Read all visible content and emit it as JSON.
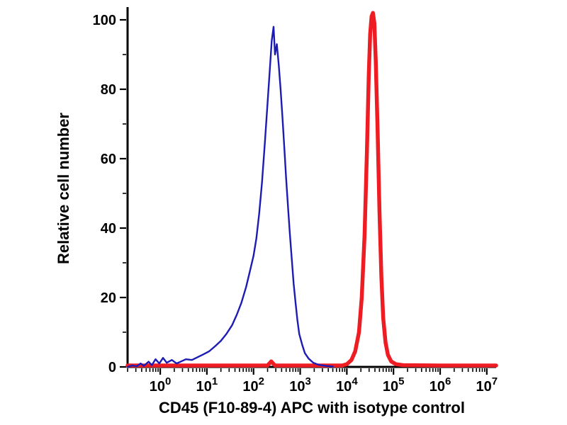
{
  "chart_data": {
    "type": "line",
    "subtype": "flow-cytometry-histogram-overlay",
    "title": "",
    "xlabel": "CD45 (F10-89-4) APC with isotype control",
    "ylabel": "Relative cell number",
    "x_scale": "log10",
    "x_tick_exponents": [
      0,
      1,
      2,
      3,
      4,
      5,
      6,
      7
    ],
    "x_log_range": [
      -0.7,
      7.2
    ],
    "y_ticks": [
      0,
      20,
      40,
      60,
      80,
      100
    ],
    "y_minor_step": 10,
    "y_range": [
      0,
      100
    ],
    "grid": false,
    "legend": "none",
    "axis_color": "#000000",
    "series": [
      {
        "id": "cd45-apc-curve",
        "name": "CD45 (F10-89-4) APC",
        "color": "#ee1c23",
        "stroke_width": 5.5,
        "peak_approx_x": 35000,
        "peak_approx_y": 102,
        "points_log10x_y": [
          [
            -0.7,
            0.4
          ],
          [
            1.0,
            0.4
          ],
          [
            2.3,
            0.4
          ],
          [
            2.38,
            1.6
          ],
          [
            2.46,
            0.4
          ],
          [
            3.5,
            0.4
          ],
          [
            3.9,
            0.4
          ],
          [
            4.0,
            0.8
          ],
          [
            4.1,
            2
          ],
          [
            4.18,
            4.5
          ],
          [
            4.26,
            10
          ],
          [
            4.32,
            20
          ],
          [
            4.38,
            38
          ],
          [
            4.43,
            62
          ],
          [
            4.47,
            84
          ],
          [
            4.5,
            96
          ],
          [
            4.53,
            101
          ],
          [
            4.56,
            102
          ],
          [
            4.59,
            99
          ],
          [
            4.62,
            88
          ],
          [
            4.66,
            68
          ],
          [
            4.7,
            45
          ],
          [
            4.74,
            26
          ],
          [
            4.78,
            14
          ],
          [
            4.83,
            7
          ],
          [
            4.88,
            3.5
          ],
          [
            4.95,
            1.6
          ],
          [
            5.05,
            0.8
          ],
          [
            5.2,
            0.5
          ],
          [
            6.0,
            0.4
          ],
          [
            7.2,
            0.4
          ]
        ]
      },
      {
        "id": "isotype-control-curve",
        "name": "isotype control",
        "color": "#1c1cb4",
        "stroke_width": 2.4,
        "peak_approx_x": 270,
        "peak_approx_y": 98,
        "points_log10x_y": [
          [
            -0.7,
            0
          ],
          [
            -0.6,
            0.4
          ],
          [
            -0.5,
            0.2
          ],
          [
            -0.42,
            1.0
          ],
          [
            -0.35,
            0.3
          ],
          [
            -0.25,
            1.5
          ],
          [
            -0.18,
            0.5
          ],
          [
            -0.1,
            2.2
          ],
          [
            -0.02,
            1.0
          ],
          [
            0.06,
            2.6
          ],
          [
            0.14,
            1.2
          ],
          [
            0.25,
            2.0
          ],
          [
            0.35,
            1.0
          ],
          [
            0.45,
            1.6
          ],
          [
            0.55,
            2.2
          ],
          [
            0.68,
            2.0
          ],
          [
            0.8,
            2.8
          ],
          [
            0.92,
            3.6
          ],
          [
            1.05,
            4.5
          ],
          [
            1.18,
            6
          ],
          [
            1.3,
            7.5
          ],
          [
            1.42,
            9.5
          ],
          [
            1.54,
            12
          ],
          [
            1.64,
            15
          ],
          [
            1.74,
            18.5
          ],
          [
            1.84,
            23
          ],
          [
            1.92,
            27.5
          ],
          [
            2.0,
            32
          ],
          [
            2.06,
            37
          ],
          [
            2.12,
            44
          ],
          [
            2.18,
            53
          ],
          [
            2.24,
            64
          ],
          [
            2.3,
            76
          ],
          [
            2.35,
            86
          ],
          [
            2.39,
            94
          ],
          [
            2.43,
            98
          ],
          [
            2.46,
            90
          ],
          [
            2.5,
            93
          ],
          [
            2.54,
            87
          ],
          [
            2.58,
            80
          ],
          [
            2.62,
            72
          ],
          [
            2.66,
            63
          ],
          [
            2.7,
            54
          ],
          [
            2.74,
            46
          ],
          [
            2.78,
            38
          ],
          [
            2.82,
            31
          ],
          [
            2.86,
            24
          ],
          [
            2.9,
            18.5
          ],
          [
            2.94,
            13.5
          ],
          [
            2.98,
            9.5
          ],
          [
            3.04,
            6.5
          ],
          [
            3.1,
            4
          ],
          [
            3.18,
            2.4
          ],
          [
            3.28,
            1.2
          ],
          [
            3.4,
            0.6
          ],
          [
            3.55,
            0.3
          ],
          [
            3.7,
            0.1
          ]
        ]
      }
    ]
  }
}
